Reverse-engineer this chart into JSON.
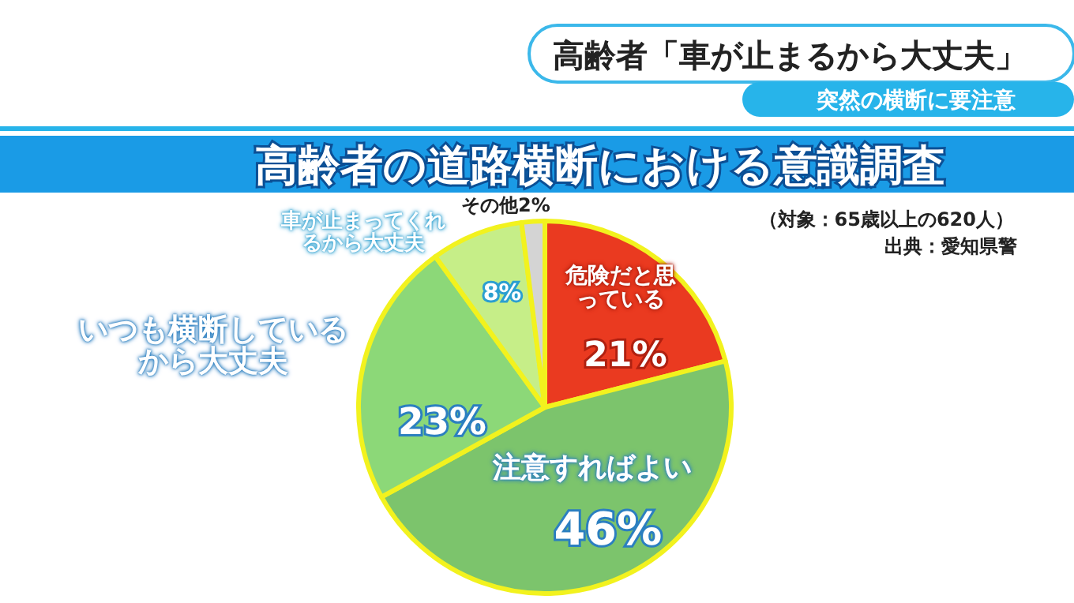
{
  "chart_data": {
    "type": "pie",
    "title": "高齢者の道路横断における意識調査",
    "categories": [
      "危険だと思っている",
      "注意すればよい",
      "いつも横断しているから大丈夫",
      "車が止まってくれるから大丈夫",
      "その他"
    ],
    "values": [
      21,
      46,
      23,
      8,
      2
    ],
    "value_labels": [
      "21%",
      "46%",
      "23%",
      "8%",
      "2%"
    ],
    "colors": [
      "#ea3a20",
      "#7cc46c",
      "#8cd878",
      "#c6ee88",
      "#d4d4d4"
    ],
    "annotations": [
      "高齢者「車が止まるから大丈夫」",
      "突然の横断に要注意",
      "（対象：65歳以上の620人）",
      "出典：愛知県警"
    ]
  }
}
